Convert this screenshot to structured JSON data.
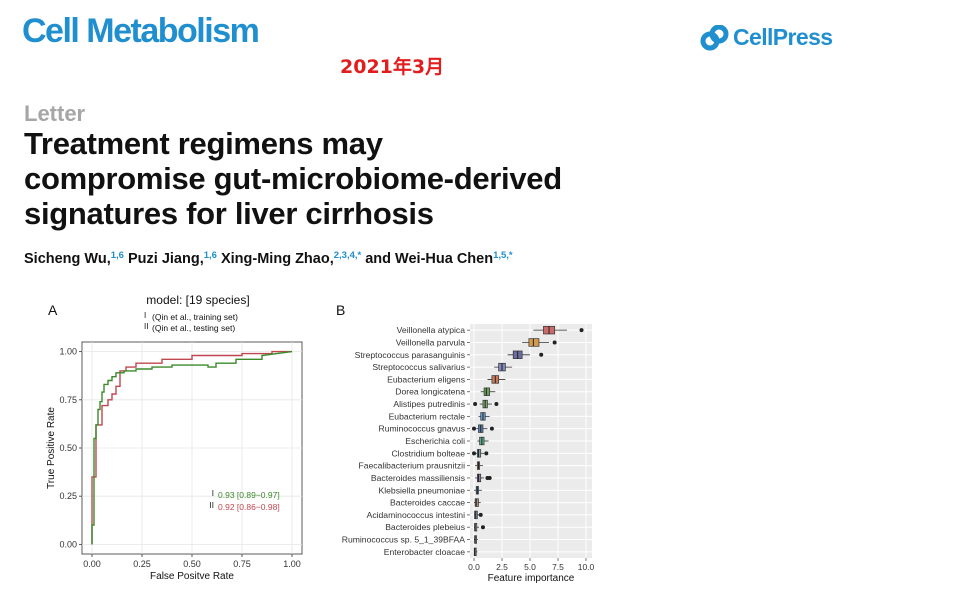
{
  "header": {
    "journal": "Cell Metabolism",
    "date_note": "2021年3月",
    "publisher": "CellPress"
  },
  "article": {
    "type": "Letter",
    "title_lines": [
      "Treatment regimens may",
      "compromise gut-microbiome-derived",
      "signatures for liver cirrhosis"
    ],
    "authors": [
      {
        "name": "Sicheng Wu,",
        "aff": "1,6"
      },
      {
        "name": " Puzi Jiang,",
        "aff": "1,6"
      },
      {
        "name": " Xing-Ming Zhao,",
        "aff": "2,3,4,*"
      },
      {
        "name": " and Wei-Hua Chen",
        "aff": "1,5,*"
      }
    ]
  },
  "figure": {
    "panel_a_label": "A",
    "panel_b_label": "B"
  },
  "chart_data": [
    {
      "type": "line",
      "title": "model: [19 species]",
      "legend": [
        {
          "symbol": "I",
          "label": "(Qin et al., training set)"
        },
        {
          "symbol": "II",
          "label": "(Qin et al., testing set)"
        }
      ],
      "xlabel": "False Positve Rate",
      "ylabel": "True Positive Rate",
      "xlim": [
        0,
        1
      ],
      "ylim": [
        0,
        1
      ],
      "xticks": [
        "0.00",
        "0.25",
        "0.50",
        "0.75",
        "1.00"
      ],
      "yticks": [
        "0.00",
        "0.25",
        "0.50",
        "0.75",
        "1.00"
      ],
      "grid": true,
      "series": [
        {
          "symbol": "I",
          "color": "#3a8a2a",
          "auc_label": "0.93 [0.89−0.97]",
          "x": [
            0,
            0,
            0.01,
            0.01,
            0.02,
            0.02,
            0.03,
            0.03,
            0.04,
            0.04,
            0.05,
            0.05,
            0.06,
            0.06,
            0.08,
            0.08,
            0.1,
            0.1,
            0.12,
            0.12,
            0.16,
            0.16,
            0.22,
            0.22,
            0.3,
            0.3,
            0.4,
            0.4,
            0.58,
            0.58,
            0.62,
            0.62,
            0.72,
            0.72,
            0.85,
            0.85,
            1.0
          ],
          "y": [
            0,
            0.1,
            0.1,
            0.55,
            0.55,
            0.62,
            0.62,
            0.7,
            0.7,
            0.74,
            0.74,
            0.79,
            0.79,
            0.83,
            0.83,
            0.85,
            0.85,
            0.87,
            0.87,
            0.89,
            0.89,
            0.9,
            0.9,
            0.91,
            0.91,
            0.92,
            0.92,
            0.93,
            0.93,
            0.92,
            0.92,
            0.94,
            0.94,
            0.96,
            0.96,
            0.98,
            1.0
          ]
        },
        {
          "symbol": "II",
          "color": "#c0474f",
          "auc_label": "0.92 [0.86−0.98]",
          "x": [
            0,
            0,
            0.02,
            0.02,
            0.05,
            0.05,
            0.08,
            0.08,
            0.1,
            0.1,
            0.12,
            0.12,
            0.14,
            0.14,
            0.17,
            0.17,
            0.22,
            0.22,
            0.35,
            0.35,
            0.5,
            0.5,
            0.75,
            0.75,
            0.9,
            0.9,
            1.0
          ],
          "y": [
            0,
            0.35,
            0.35,
            0.62,
            0.62,
            0.72,
            0.72,
            0.75,
            0.75,
            0.78,
            0.78,
            0.82,
            0.82,
            0.9,
            0.9,
            0.92,
            0.92,
            0.94,
            0.94,
            0.96,
            0.96,
            0.98,
            0.98,
            0.99,
            0.99,
            1.0,
            1.0
          ]
        }
      ]
    },
    {
      "type": "box",
      "xlabel": "Feature importance",
      "xlim": [
        0,
        10
      ],
      "xticks": [
        "0.0",
        "2.5",
        "5.0",
        "7.5",
        "10.0"
      ],
      "grid": true,
      "categories": [
        "Veillonella atypica",
        "Veillonella parvula",
        "Streptococcus parasanguinis",
        "Streptococcus salivarius",
        "Eubacterium eligens",
        "Dorea longicatena",
        "Alistipes putredinis",
        "Eubacterium rectale",
        "Ruminococcus gnavus",
        "Escherichia coli",
        "Clostridium bolteae",
        "Faecalibacterium prausnitzii",
        "Bacteroides massiliensis",
        "Klebsiella pneumoniae",
        "Bacteroides caccae",
        "Acidaminococcus intestini",
        "Bacteroides plebeius",
        "Ruminococcus sp. 5_1_39BFAA",
        "Enterobacter cloacae"
      ],
      "boxes": [
        {
          "min": 5.3,
          "q1": 6.2,
          "median": 6.7,
          "q3": 7.2,
          "max": 8.3,
          "outliers": [
            9.6
          ],
          "color": "#c96b6b"
        },
        {
          "min": 4.3,
          "q1": 4.9,
          "median": 5.3,
          "q3": 5.8,
          "max": 6.7,
          "outliers": [
            7.2
          ],
          "color": "#d39a4d"
        },
        {
          "min": 3.0,
          "q1": 3.5,
          "median": 3.9,
          "q3": 4.3,
          "max": 5.0,
          "outliers": [
            6.0
          ],
          "color": "#6c6c9e"
        },
        {
          "min": 1.8,
          "q1": 2.2,
          "median": 2.5,
          "q3": 2.8,
          "max": 3.4,
          "outliers": [],
          "color": "#7f87b8"
        },
        {
          "min": 1.2,
          "q1": 1.6,
          "median": 1.9,
          "q3": 2.2,
          "max": 2.8,
          "outliers": [],
          "color": "#c87a5a"
        },
        {
          "min": 0.6,
          "q1": 0.9,
          "median": 1.1,
          "q3": 1.4,
          "max": 1.9,
          "outliers": [],
          "color": "#6aa05a"
        },
        {
          "min": 0.5,
          "q1": 0.8,
          "median": 1.0,
          "q3": 1.2,
          "max": 1.6,
          "outliers": [
            0.1,
            2.0
          ],
          "color": "#7fae6a"
        },
        {
          "min": 0.4,
          "q1": 0.6,
          "median": 0.8,
          "q3": 1.0,
          "max": 1.4,
          "outliers": [],
          "color": "#5f9fd6"
        },
        {
          "min": 0.2,
          "q1": 0.4,
          "median": 0.6,
          "q3": 0.8,
          "max": 1.2,
          "outliers": [
            0.0,
            1.6
          ],
          "color": "#5a7fb5"
        },
        {
          "min": 0.3,
          "q1": 0.5,
          "median": 0.7,
          "q3": 0.9,
          "max": 1.3,
          "outliers": [],
          "color": "#5fae8a"
        },
        {
          "min": 0.1,
          "q1": 0.3,
          "median": 0.4,
          "q3": 0.6,
          "max": 0.9,
          "outliers": [
            0.0,
            1.1
          ],
          "color": "#7a9fa5"
        },
        {
          "min": 0.1,
          "q1": 0.3,
          "median": 0.4,
          "q3": 0.5,
          "max": 0.8,
          "outliers": [],
          "color": "#b58a70"
        },
        {
          "min": 0.1,
          "q1": 0.3,
          "median": 0.4,
          "q3": 0.6,
          "max": 0.9,
          "outliers": [
            1.2,
            1.4
          ],
          "color": "#8f7aa8"
        },
        {
          "min": 0.0,
          "q1": 0.2,
          "median": 0.3,
          "q3": 0.4,
          "max": 0.7,
          "outliers": [],
          "color": "#4f95c8"
        },
        {
          "min": 0.0,
          "q1": 0.1,
          "median": 0.2,
          "q3": 0.4,
          "max": 0.6,
          "outliers": [],
          "color": "#b08f7a"
        },
        {
          "min": 0.0,
          "q1": 0.05,
          "median": 0.15,
          "q3": 0.3,
          "max": 0.5,
          "outliers": [
            0.6
          ],
          "color": "#7a8f9a"
        },
        {
          "min": 0.0,
          "q1": 0.05,
          "median": 0.1,
          "q3": 0.25,
          "max": 0.45,
          "outliers": [
            0.8
          ],
          "color": "#9a9a9a"
        },
        {
          "min": 0.0,
          "q1": 0.05,
          "median": 0.1,
          "q3": 0.2,
          "max": 0.35,
          "outliers": [],
          "color": "#8f8f8f"
        },
        {
          "min": 0.0,
          "q1": 0.02,
          "median": 0.08,
          "q3": 0.15,
          "max": 0.3,
          "outliers": [],
          "color": "#999999"
        }
      ]
    }
  ]
}
